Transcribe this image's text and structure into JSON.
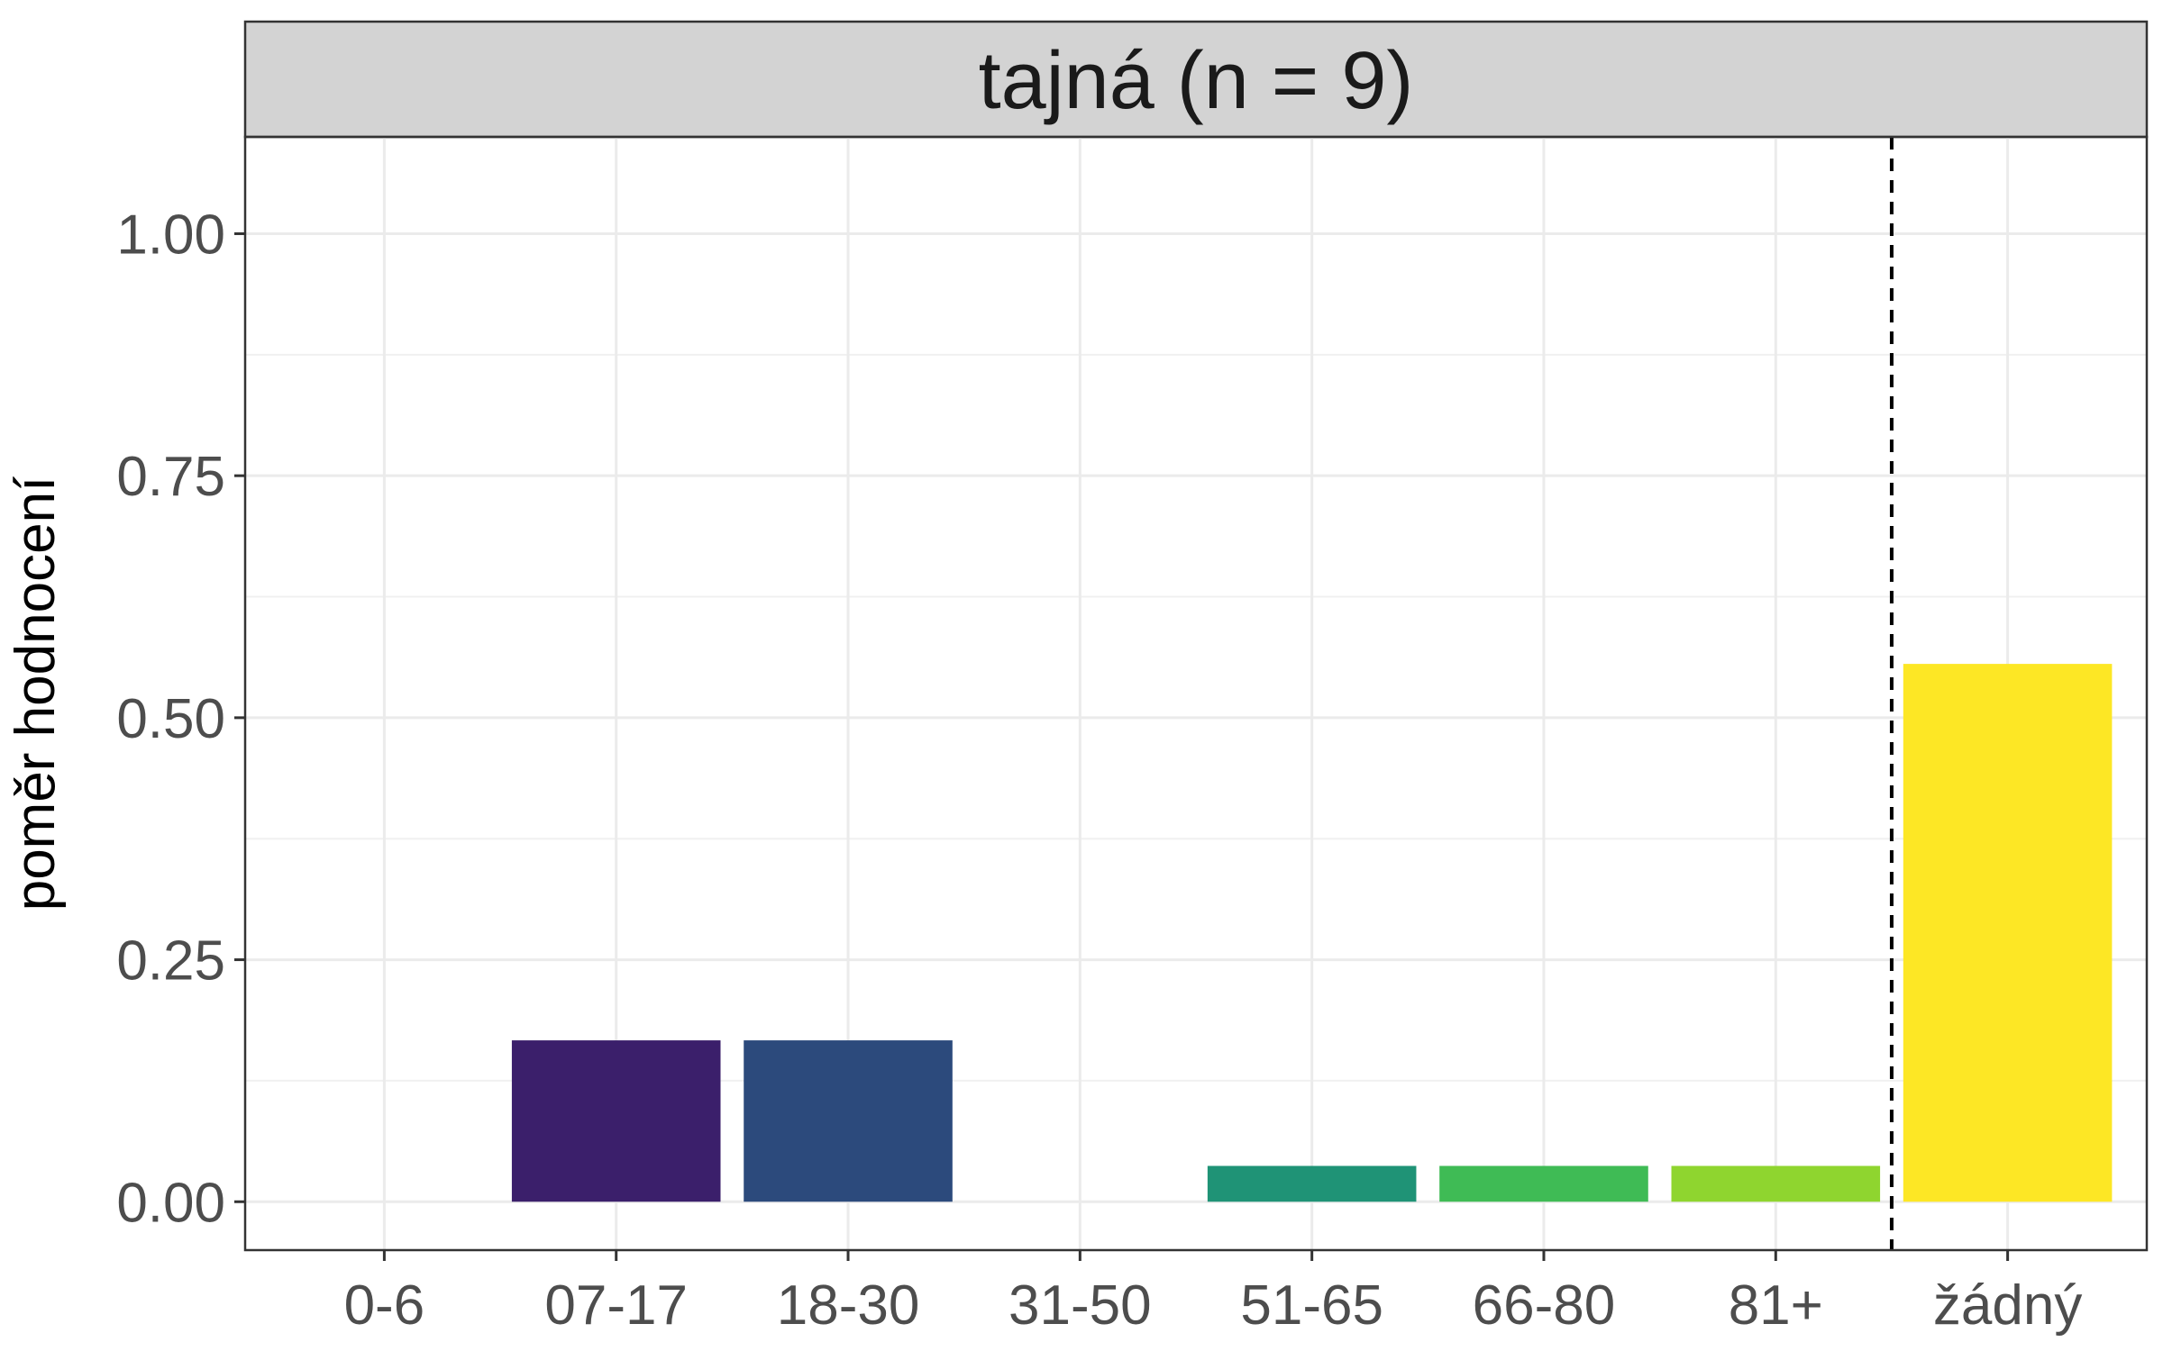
{
  "chart_data": {
    "type": "bar",
    "facet_title": "tajná (n = 9)",
    "ylabel": "poměr hodnocení",
    "xlabel": "",
    "categories": [
      "0-6",
      "07-17",
      "18-30",
      "31-50",
      "51-65",
      "66-80",
      "81+",
      "žádný"
    ],
    "values": [
      0,
      0.1667,
      0.1667,
      0,
      0.037,
      0.037,
      0.037,
      0.5556
    ],
    "colors": [
      "#440154",
      "#3B1F6B",
      "#2C4A7C",
      "#21908C",
      "#1F9376",
      "#3FBB55",
      "#8FD52F",
      "#FDE725"
    ],
    "ylim": [
      -0.05,
      1.1
    ],
    "yticks": [
      0.0,
      0.25,
      0.5,
      0.75,
      1.0
    ],
    "ytick_labels": [
      "0.00",
      "0.25",
      "0.50",
      "0.75",
      "1.00"
    ],
    "reference_line": {
      "between": [
        "81+",
        "žádný"
      ],
      "style": "dashed"
    },
    "grid": true,
    "theme": "bw"
  }
}
